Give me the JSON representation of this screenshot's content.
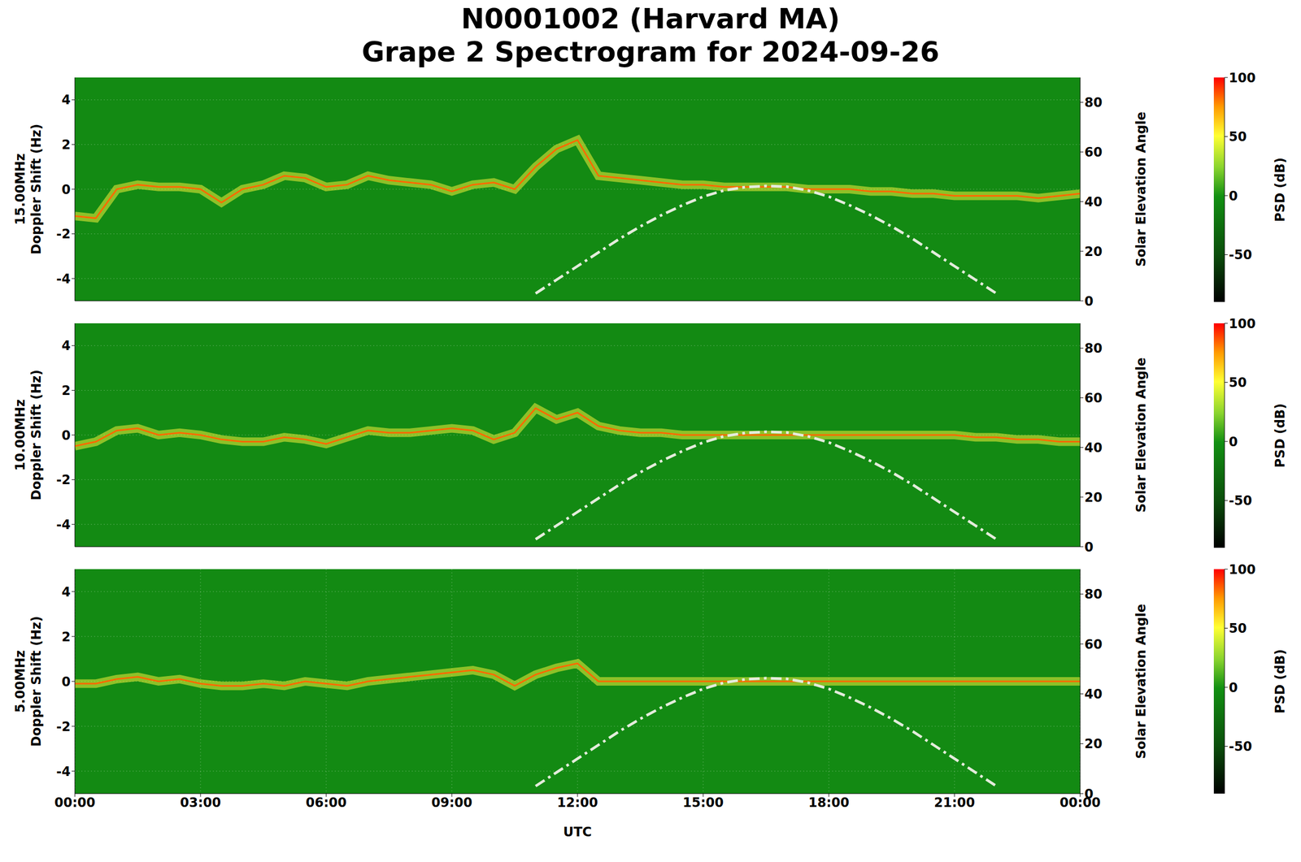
{
  "title": "N0001002 (Harvard MA)",
  "subtitle": "Grape 2 Spectrogram for 2024-09-26",
  "chart_data": [
    {
      "type": "line",
      "ylabel": "15.00MHz\nDoppler Shift (Hz)",
      "y2label": "Solar Elevation Angle",
      "grid": true,
      "tick_labels": "y",
      "x": [
        0,
        0.5,
        1,
        1.5,
        2,
        2.5,
        3,
        3.5,
        4,
        4.5,
        5,
        5.5,
        6,
        6.5,
        7,
        7.5,
        8,
        8.5,
        9,
        9.5,
        10,
        10.5,
        11,
        11.5,
        12,
        12.5,
        13,
        13.5,
        14,
        14.5,
        15,
        15.5,
        16,
        16.5,
        17,
        17.5,
        18,
        18.5,
        19,
        19.5,
        20,
        20.5,
        21,
        21.5,
        22,
        22.5,
        23,
        23.5,
        24
      ],
      "xlim": [
        0,
        24
      ],
      "xticks": [
        {
          "value": 0,
          "label": "00:00"
        },
        {
          "value": 3,
          "label": "03:00"
        },
        {
          "value": 6,
          "label": "06:00"
        },
        {
          "value": 9,
          "label": "09:00"
        },
        {
          "value": 12,
          "label": "12:00"
        },
        {
          "value": 15,
          "label": "15:00"
        },
        {
          "value": 18,
          "label": "18:00"
        },
        {
          "value": 21,
          "label": "21:00"
        },
        {
          "value": 24,
          "label": "00:00"
        }
      ],
      "ylim": [
        -5,
        5
      ],
      "yticks": [
        -4,
        -2,
        0,
        2,
        4
      ],
      "y2lim": [
        0,
        90
      ],
      "y2ticks": [
        0,
        20,
        40,
        60,
        80
      ],
      "colorbar": {
        "label": "PSD (dB)",
        "lim": [
          -90,
          100
        ],
        "ticks": [
          -50,
          0,
          50,
          100
        ]
      },
      "series": [
        {
          "color": "#ff6a00",
          "values": [
            -1.2,
            -1.3,
            0,
            0.2,
            0.1,
            0.1,
            0,
            -0.6,
            0,
            0.2,
            0.6,
            0.5,
            0.1,
            0.2,
            0.6,
            0.4,
            0.3,
            0.2,
            -0.1,
            0.2,
            0.3,
            0,
            1.0,
            1.8,
            2.2,
            0.6,
            0.5,
            0.4,
            0.3,
            0.2,
            0.2,
            0.1,
            0.1,
            0.1,
            0.1,
            0,
            0,
            0,
            -0.1,
            -0.1,
            -0.2,
            -0.2,
            -0.3,
            -0.3,
            -0.3,
            -0.3,
            -0.4,
            -0.3,
            -0.2
          ]
        },
        {
          "color": "#e4ecdc",
          "axis": "y2",
          "line_style": "dashdot",
          "values": [
            null,
            null,
            null,
            null,
            null,
            null,
            null,
            null,
            null,
            null,
            null,
            null,
            null,
            null,
            null,
            null,
            null,
            null,
            null,
            null,
            null,
            null,
            3,
            8.5,
            14,
            19.5,
            25,
            30,
            34.5,
            38.5,
            42,
            44.5,
            45.8,
            46.3,
            46,
            44.5,
            42,
            38.5,
            34.5,
            30,
            25,
            19.5,
            14,
            8.5,
            3,
            null,
            null,
            null,
            null
          ]
        }
      ]
    },
    {
      "type": "line",
      "ylabel": "10.00MHz\nDoppler Shift (Hz)",
      "y2label": "Solar Elevation Angle",
      "grid": true,
      "tick_labels": "y",
      "x": [
        0,
        0.5,
        1,
        1.5,
        2,
        2.5,
        3,
        3.5,
        4,
        4.5,
        5,
        5.5,
        6,
        6.5,
        7,
        7.5,
        8,
        8.5,
        9,
        9.5,
        10,
        10.5,
        11,
        11.5,
        12,
        12.5,
        13,
        13.5,
        14,
        14.5,
        15,
        15.5,
        16,
        16.5,
        17,
        17.5,
        18,
        18.5,
        19,
        19.5,
        20,
        20.5,
        21,
        21.5,
        22,
        22.5,
        23,
        23.5,
        24
      ],
      "xlim": [
        0,
        24
      ],
      "xticks": [
        {
          "value": 0,
          "label": "00:00"
        },
        {
          "value": 3,
          "label": "03:00"
        },
        {
          "value": 6,
          "label": "06:00"
        },
        {
          "value": 9,
          "label": "09:00"
        },
        {
          "value": 12,
          "label": "12:00"
        },
        {
          "value": 15,
          "label": "15:00"
        },
        {
          "value": 18,
          "label": "18:00"
        },
        {
          "value": 21,
          "label": "21:00"
        },
        {
          "value": 24,
          "label": "00:00"
        }
      ],
      "ylim": [
        -5,
        5
      ],
      "yticks": [
        -4,
        -2,
        0,
        2,
        4
      ],
      "y2lim": [
        0,
        90
      ],
      "y2ticks": [
        0,
        20,
        40,
        60,
        80
      ],
      "colorbar": {
        "label": "PSD (dB)",
        "lim": [
          -90,
          100
        ],
        "ticks": [
          -50,
          0,
          50,
          100
        ]
      },
      "series": [
        {
          "color": "#ff6a00",
          "values": [
            -0.5,
            -0.3,
            0.2,
            0.3,
            0,
            0.1,
            0,
            -0.2,
            -0.3,
            -0.3,
            -0.1,
            -0.2,
            -0.4,
            -0.1,
            0.2,
            0.1,
            0.1,
            0.2,
            0.3,
            0.2,
            -0.2,
            0.1,
            1.2,
            0.7,
            1.0,
            0.4,
            0.2,
            0.1,
            0.1,
            0,
            0,
            0,
            0,
            0,
            0,
            0,
            0,
            0,
            0,
            0,
            0,
            0,
            0,
            -0.1,
            -0.1,
            -0.2,
            -0.2,
            -0.3,
            -0.3
          ]
        },
        {
          "color": "#e4ecdc",
          "axis": "y2",
          "line_style": "dashdot",
          "values": [
            null,
            null,
            null,
            null,
            null,
            null,
            null,
            null,
            null,
            null,
            null,
            null,
            null,
            null,
            null,
            null,
            null,
            null,
            null,
            null,
            null,
            null,
            3,
            8.5,
            14,
            19.5,
            25,
            30,
            34.5,
            38.5,
            42,
            44.5,
            45.8,
            46.3,
            46,
            44.5,
            42,
            38.5,
            34.5,
            30,
            25,
            19.5,
            14,
            8.5,
            3,
            null,
            null,
            null,
            null
          ]
        }
      ]
    },
    {
      "type": "line",
      "ylabel": "5.00MHz\nDoppler Shift (Hz)",
      "y2label": "Solar Elevation Angle",
      "xlabel": "UTC",
      "grid": true,
      "x": [
        0,
        0.5,
        1,
        1.5,
        2,
        2.5,
        3,
        3.5,
        4,
        4.5,
        5,
        5.5,
        6,
        6.5,
        7,
        7.5,
        8,
        8.5,
        9,
        9.5,
        10,
        10.5,
        11,
        11.5,
        12,
        12.5,
        13,
        13.5,
        14,
        14.5,
        15,
        15.5,
        16,
        16.5,
        17,
        17.5,
        18,
        18.5,
        19,
        19.5,
        20,
        20.5,
        21,
        21.5,
        22,
        22.5,
        23,
        23.5,
        24
      ],
      "xlim": [
        0,
        24
      ],
      "xticks": [
        {
          "value": 0,
          "label": "00:00"
        },
        {
          "value": 3,
          "label": "03:00"
        },
        {
          "value": 6,
          "label": "06:00"
        },
        {
          "value": 9,
          "label": "09:00"
        },
        {
          "value": 12,
          "label": "12:00"
        },
        {
          "value": 15,
          "label": "15:00"
        },
        {
          "value": 18,
          "label": "18:00"
        },
        {
          "value": 21,
          "label": "21:00"
        },
        {
          "value": 24,
          "label": "00:00"
        }
      ],
      "ylim": [
        -5,
        5
      ],
      "yticks": [
        -4,
        -2,
        0,
        2,
        4
      ],
      "y2lim": [
        0,
        90
      ],
      "y2ticks": [
        0,
        20,
        40,
        60,
        80
      ],
      "colorbar": {
        "label": "PSD (dB)",
        "lim": [
          -90,
          100
        ],
        "ticks": [
          -50,
          0,
          50,
          100
        ]
      },
      "series": [
        {
          "color": "#ff6a00",
          "values": [
            -0.1,
            -0.1,
            0.1,
            0.2,
            0,
            0.1,
            -0.1,
            -0.2,
            -0.2,
            -0.1,
            -0.2,
            0,
            -0.1,
            -0.2,
            0,
            0.1,
            0.2,
            0.3,
            0.4,
            0.5,
            0.3,
            -0.2,
            0.3,
            0.6,
            0.8,
            0,
            0,
            0,
            0,
            0,
            0,
            0,
            0,
            0,
            0,
            0,
            0,
            0,
            0,
            0,
            0,
            0,
            0,
            0,
            0,
            0,
            0,
            0,
            0
          ]
        },
        {
          "color": "#e4ecdc",
          "axis": "y2",
          "line_style": "dashdot",
          "values": [
            null,
            null,
            null,
            null,
            null,
            null,
            null,
            null,
            null,
            null,
            null,
            null,
            null,
            null,
            null,
            null,
            null,
            null,
            null,
            null,
            null,
            null,
            3,
            8.5,
            14,
            19.5,
            25,
            30,
            34.5,
            38.5,
            42,
            44.5,
            45.8,
            46.3,
            46,
            44.5,
            42,
            38.5,
            34.5,
            30,
            25,
            19.5,
            14,
            8.5,
            3,
            null,
            null,
            null,
            null
          ]
        }
      ]
    }
  ]
}
